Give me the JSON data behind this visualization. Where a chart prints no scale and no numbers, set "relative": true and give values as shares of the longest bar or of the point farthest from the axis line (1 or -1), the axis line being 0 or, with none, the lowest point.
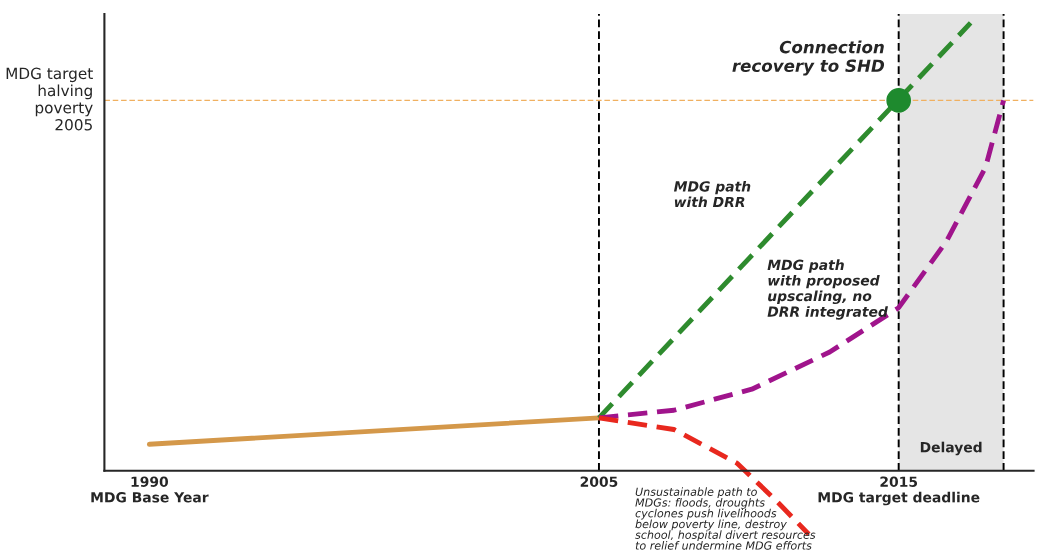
{
  "chart_data": {
    "type": "line",
    "relative": true,
    "xlim": [
      1988.5,
      2019.5
    ],
    "xticks": [
      {
        "value": 1990,
        "label": "1990\nMDG Base Year"
      },
      {
        "value": 2005,
        "label": "2005"
      },
      {
        "value": 2015,
        "label": "2015\nMDG target deadline"
      }
    ],
    "tick_labels": "x",
    "grid": false,
    "legend": false,
    "series": [
      {
        "color": "#d4984a",
        "line_style": "solid",
        "x": [
          1990,
          2005
        ],
        "values": [
          0.059,
          0.118
        ]
      },
      {
        "name": "MDG path\nwith DRR",
        "color": "#2e8b2e",
        "line_style": "dashed",
        "x": [
          2005,
          2017.4
        ],
        "values": [
          0.118,
          1.0
        ]
      },
      {
        "name": "MDG path\nwith proposed\nupscaling, no\nDRR integrated",
        "color": "#a0148c",
        "line_style": "dashed",
        "x": [
          2005,
          2007.5,
          2010.1,
          2012.7,
          2015,
          2016.6,
          2017.9,
          2018.5
        ],
        "values": [
          0.118,
          0.135,
          0.182,
          0.265,
          0.364,
          0.513,
          0.678,
          0.827
        ]
      },
      {
        "name": "Unsustainable path to\nMDGs: floods, droughts\ncyclones push livelihoods\nbelow poverty line, destroy\nschool, hospital divert resources\nto relief undermine MDG efforts",
        "color": "#e8281e",
        "line_style": "dashed",
        "x": [
          2005,
          2007.5,
          2009.6,
          2010.9,
          2012.0
        ],
        "values": [
          0.118,
          0.092,
          0.017,
          -0.066,
          -0.142
        ]
      },
      {
        "type": "scatter",
        "color": "#1e8a2e",
        "marker": "circle",
        "x": [
          2015
        ],
        "values": [
          0.827
        ]
      }
    ],
    "ref_lines": [
      {
        "axis": "y",
        "value": 0.827,
        "label": "MDG target\nhalving\npoverty\n2005",
        "color": "#f0b060",
        "line_style": "dashed"
      },
      {
        "axis": "x",
        "value": 2005,
        "color": "#000000",
        "line_style": "dashed"
      },
      {
        "axis": "x",
        "value": 2015,
        "color": "#000000",
        "line_style": "dashed"
      },
      {
        "axis": "x",
        "value": 2018.5,
        "color": "#000000",
        "line_style": "dashed"
      }
    ],
    "bands": [
      {
        "axis": "x",
        "from": 2015,
        "to": 2018.5,
        "label": "Delayed",
        "color": "#e5e5e5"
      }
    ],
    "annotations": [
      {
        "text": "Connection\nrecovery to SHD",
        "x": 2015,
        "y": 0.827
      }
    ]
  }
}
